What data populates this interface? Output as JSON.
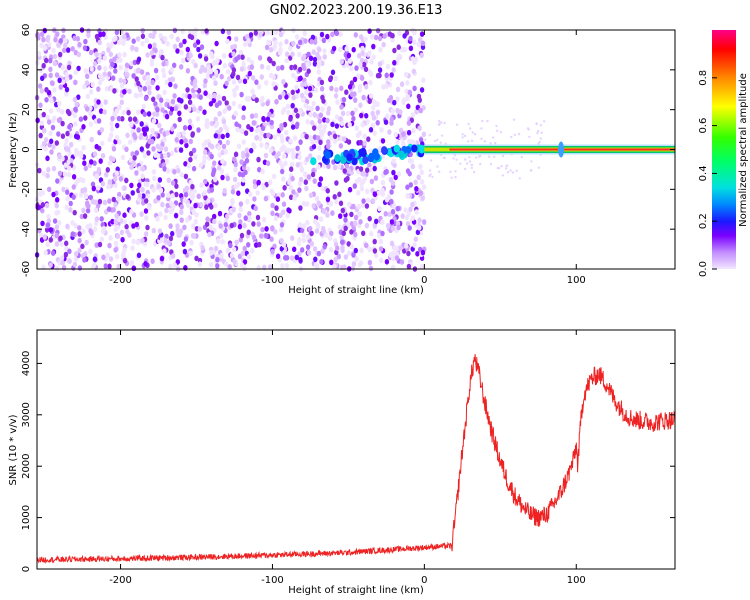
{
  "title": "GN02.2023.200.19.36.E13",
  "chart_data": [
    {
      "type": "heatmap",
      "xlabel": "Height of straight line (km)",
      "ylabel": "Frequency (Hz)",
      "xlim": [
        -255,
        165
      ],
      "ylim": [
        -60,
        60
      ],
      "xticks": [
        -200,
        -100,
        0,
        100
      ],
      "yticks": [
        -60,
        -40,
        -20,
        0,
        20,
        40,
        60
      ],
      "colorbar": {
        "label": "Normalized spectral amplitude",
        "range": [
          0.0,
          1.0
        ],
        "ticks": [
          0.0,
          0.2,
          0.4,
          0.6,
          0.8
        ]
      },
      "features": [
        {
          "region": "x from -255 to 0",
          "description": "scattered low-amplitude noise",
          "amplitude": [
            0.0,
            0.2
          ]
        },
        {
          "region": "x from -75 to 0, frequency near 0",
          "description": "blobs",
          "amplitude": [
            0.2,
            0.4
          ]
        },
        {
          "region": "x from 0 to 165, frequency 0",
          "description": "continuous tone",
          "amplitude": [
            0.6,
            1.0
          ]
        },
        {
          "region": "x near 90",
          "description": "short broadening",
          "amplitude": [
            0.2,
            0.3
          ]
        }
      ]
    },
    {
      "type": "line",
      "xlabel": "Height of straight line (km)",
      "ylabel": "SNR (10 * v/v)",
      "xlim": [
        -255,
        165
      ],
      "ylim": [
        0,
        4650
      ],
      "xticks": [
        -200,
        -100,
        0,
        100
      ],
      "yticks": [
        0,
        1000,
        2000,
        3000,
        4000
      ],
      "series": [
        {
          "color": "#ee2222",
          "x": [
            -255,
            -200,
            -150,
            -100,
            -50,
            -20,
            0,
            10,
            18,
            20,
            25,
            30,
            33,
            36,
            40,
            45,
            50,
            55,
            60,
            65,
            70,
            75,
            80,
            85,
            90,
            95,
            98,
            100,
            101,
            103,
            105,
            110,
            115,
            120,
            125,
            130,
            135,
            140,
            150,
            160,
            165
          ],
          "values": [
            180,
            200,
            230,
            270,
            320,
            380,
            420,
            440,
            450,
            900,
            2300,
            3600,
            4100,
            3800,
            3200,
            2600,
            2100,
            1700,
            1400,
            1200,
            1050,
            1000,
            1050,
            1250,
            1500,
            1850,
            2100,
            2400,
            2000,
            2900,
            3400,
            3700,
            3800,
            3600,
            3300,
            3100,
            2950,
            2900,
            2850,
            2900,
            2900
          ]
        }
      ]
    }
  ]
}
